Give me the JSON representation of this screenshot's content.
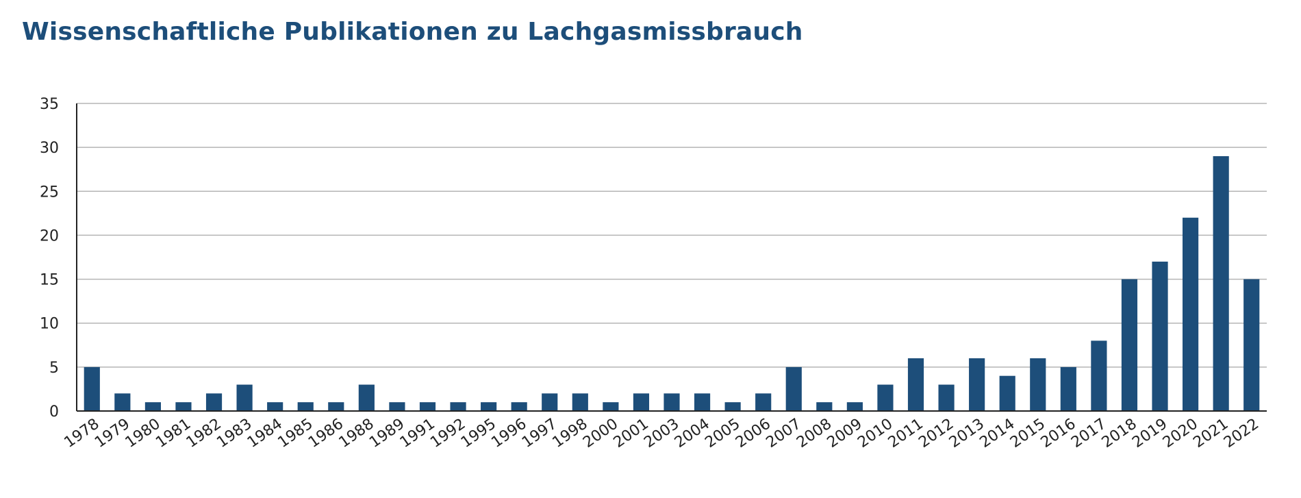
{
  "chart_data": {
    "type": "bar",
    "title": "Wissenschaftliche Publikationen zu Lachgasmissbrauch",
    "xlabel": "",
    "ylabel": "",
    "ylim": [
      0,
      35
    ],
    "yticks": [
      0,
      5,
      10,
      15,
      20,
      25,
      30,
      35
    ],
    "grid": true,
    "bar_color": "#1d4e7a",
    "categories": [
      "1978",
      "1979",
      "1980",
      "1981",
      "1982",
      "1983",
      "1984",
      "1985",
      "1986",
      "1988",
      "1989",
      "1991",
      "1992",
      "1995",
      "1996",
      "1997",
      "1998",
      "2000",
      "2001",
      "2003",
      "2004",
      "2005",
      "2006",
      "2007",
      "2008",
      "2009",
      "2010",
      "2011",
      "2012",
      "2013",
      "2014",
      "2015",
      "2016",
      "2017",
      "2018",
      "2019",
      "2020",
      "2021",
      "2022"
    ],
    "values": [
      5,
      2,
      1,
      1,
      2,
      3,
      1,
      1,
      1,
      3,
      1,
      1,
      1,
      1,
      1,
      2,
      2,
      1,
      2,
      2,
      2,
      1,
      2,
      5,
      1,
      1,
      3,
      6,
      3,
      6,
      4,
      6,
      5,
      8,
      15,
      17,
      22,
      29,
      15
    ]
  }
}
